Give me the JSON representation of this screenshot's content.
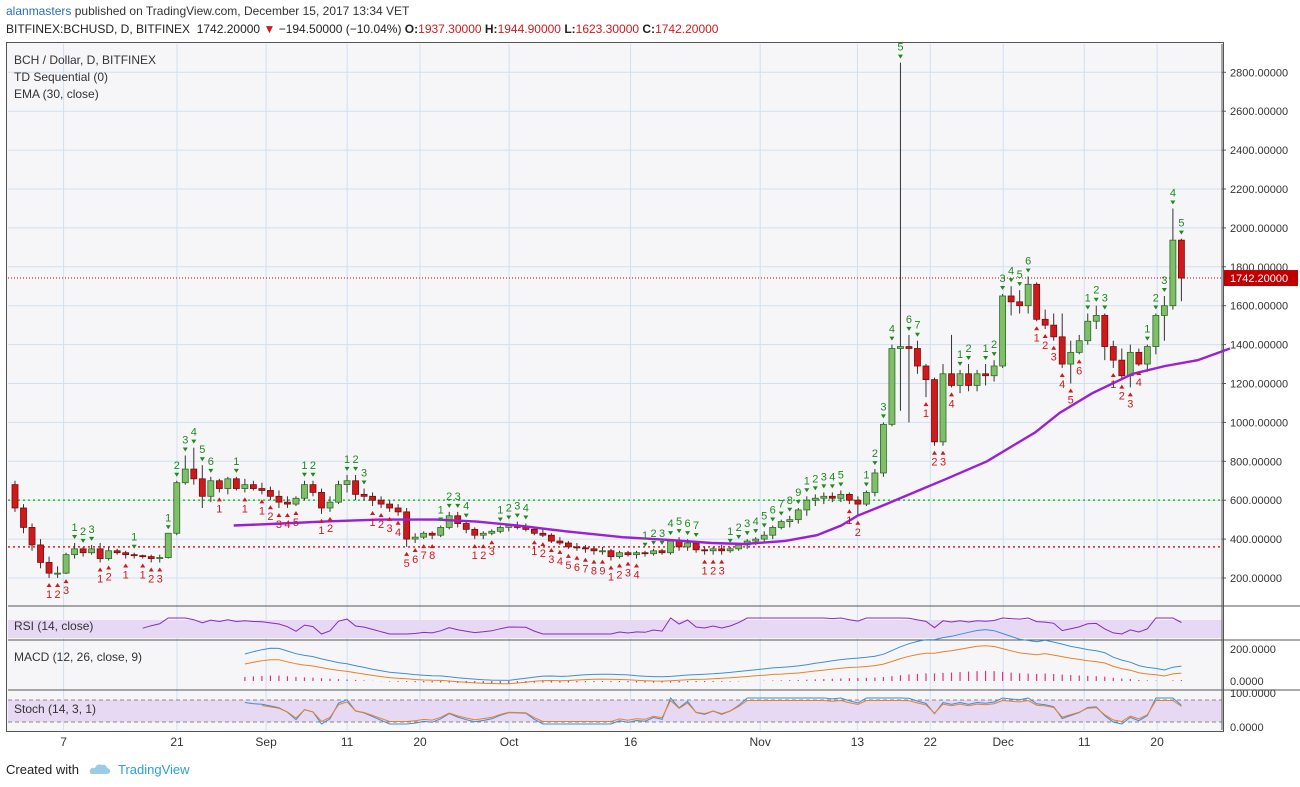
{
  "header": {
    "user": "alanmasters",
    "published": "published on TradingView.com, December 15, 2017 13:34 VET",
    "symbol": "BITFINEX:BCHUSD, D, BITFINEX",
    "price": "1742.20000",
    "change_arrow": "▼",
    "change": "−194.50000 (−10.04%)",
    "o_label": "O:",
    "o": "1937.30000",
    "h_label": "H:",
    "h": "1944.90000",
    "l_label": "L:",
    "l": "1623.30000",
    "c_label": "C:",
    "c": "1742.20000"
  },
  "legend": {
    "title": "BCH / Dollar, D, BITFINEX",
    "td": "TD Sequential (0)",
    "ema": "EMA (30, close)",
    "rsi": "RSI (14, close)",
    "macd": "MACD (12, 26, close, 9)",
    "stoch": "Stoch (14, 3, 1)"
  },
  "footer": {
    "created": "Created with",
    "brand": "TradingView"
  },
  "colors": {
    "up": "#5aa04e",
    "down": "#d0191b",
    "ema": "#9b1fd6",
    "grid": "#cfe0f3",
    "price_line": "#c00000"
  },
  "chart_data": {
    "type": "candlestick",
    "symbol": "BCH / Dollar",
    "interval": "D",
    "price_axis": {
      "ticks": [
        "200.00000",
        "400.00000",
        "600.00000",
        "800.00000",
        "1000.00000",
        "1200.00000",
        "1400.00000",
        "1600.00000",
        "1800.00000",
        "2000.00000",
        "2200.00000",
        "2400.00000",
        "2600.00000",
        "2800.00000"
      ],
      "ylim": [
        50,
        2900
      ]
    },
    "x_labels": [
      {
        "label": "7",
        "day": 6
      },
      {
        "label": "21",
        "day": 20
      },
      {
        "label": "Sep",
        "day": 31
      },
      {
        "label": "11",
        "day": 41
      },
      {
        "label": "20",
        "day": 50
      },
      {
        "label": "Oct",
        "day": 61
      },
      {
        "label": "16",
        "day": 76
      },
      {
        "label": "Nov",
        "day": 92
      },
      {
        "label": "13",
        "day": 104
      },
      {
        "label": "22",
        "day": 113
      },
      {
        "label": "Dec",
        "day": 122
      },
      {
        "label": "11",
        "day": 132
      },
      {
        "label": "20",
        "day": 141
      }
    ],
    "last_price_label": "1742.20000",
    "support_lines": [
      600,
      360
    ],
    "ohlc": [
      [
        680,
        700,
        540,
        560
      ],
      [
        560,
        580,
        430,
        460
      ],
      [
        460,
        480,
        340,
        370
      ],
      [
        370,
        400,
        250,
        280
      ],
      [
        280,
        310,
        200,
        225
      ],
      [
        225,
        260,
        200,
        225
      ],
      [
        225,
        330,
        220,
        320
      ],
      [
        320,
        380,
        300,
        350
      ],
      [
        350,
        360,
        310,
        330
      ],
      [
        330,
        370,
        320,
        350
      ],
      [
        350,
        380,
        280,
        300
      ],
      [
        300,
        360,
        290,
        340
      ],
      [
        340,
        350,
        320,
        330
      ],
      [
        330,
        340,
        300,
        320
      ],
      [
        320,
        330,
        300,
        315
      ],
      [
        315,
        320,
        300,
        310
      ],
      [
        310,
        320,
        280,
        300
      ],
      [
        300,
        320,
        280,
        305
      ],
      [
        305,
        430,
        300,
        430
      ],
      [
        430,
        700,
        420,
        690
      ],
      [
        690,
        830,
        680,
        760
      ],
      [
        760,
        870,
        680,
        710
      ],
      [
        710,
        780,
        560,
        620
      ],
      [
        620,
        720,
        590,
        700
      ],
      [
        700,
        710,
        640,
        660
      ],
      [
        660,
        720,
        630,
        710
      ],
      [
        710,
        720,
        650,
        660
      ],
      [
        660,
        710,
        640,
        680
      ],
      [
        680,
        700,
        650,
        660
      ],
      [
        660,
        690,
        630,
        650
      ],
      [
        650,
        670,
        600,
        620
      ],
      [
        620,
        650,
        560,
        590
      ],
      [
        590,
        620,
        560,
        580
      ],
      [
        580,
        620,
        570,
        610
      ],
      [
        610,
        700,
        600,
        680
      ],
      [
        680,
        700,
        620,
        640
      ],
      [
        640,
        660,
        530,
        560
      ],
      [
        560,
        620,
        540,
        590
      ],
      [
        590,
        700,
        580,
        680
      ],
      [
        680,
        730,
        640,
        700
      ],
      [
        700,
        730,
        600,
        630
      ],
      [
        630,
        660,
        600,
        620
      ],
      [
        620,
        640,
        570,
        600
      ],
      [
        600,
        620,
        560,
        580
      ],
      [
        580,
        600,
        540,
        560
      ],
      [
        560,
        580,
        520,
        540
      ],
      [
        540,
        560,
        360,
        400
      ],
      [
        400,
        430,
        380,
        410
      ],
      [
        410,
        440,
        400,
        430
      ],
      [
        430,
        440,
        400,
        420
      ],
      [
        420,
        470,
        410,
        460
      ],
      [
        460,
        540,
        450,
        520
      ],
      [
        520,
        540,
        460,
        480
      ],
      [
        480,
        490,
        430,
        450
      ],
      [
        450,
        460,
        400,
        420
      ],
      [
        420,
        440,
        400,
        430
      ],
      [
        430,
        450,
        420,
        440
      ],
      [
        440,
        470,
        430,
        460
      ],
      [
        460,
        480,
        440,
        470
      ],
      [
        470,
        490,
        450,
        460
      ],
      [
        460,
        480,
        440,
        450
      ],
      [
        450,
        460,
        420,
        430
      ],
      [
        430,
        450,
        410,
        420
      ],
      [
        420,
        430,
        380,
        390
      ],
      [
        390,
        410,
        370,
        380
      ],
      [
        380,
        390,
        350,
        360
      ],
      [
        360,
        380,
        340,
        355
      ],
      [
        355,
        370,
        330,
        350
      ],
      [
        350,
        360,
        320,
        340
      ],
      [
        340,
        360,
        320,
        340
      ],
      [
        340,
        350,
        290,
        310
      ],
      [
        310,
        340,
        300,
        330
      ],
      [
        330,
        340,
        310,
        320
      ],
      [
        320,
        340,
        300,
        330
      ],
      [
        330,
        340,
        310,
        325
      ],
      [
        325,
        350,
        315,
        340
      ],
      [
        340,
        350,
        320,
        330
      ],
      [
        330,
        400,
        320,
        390
      ],
      [
        390,
        410,
        340,
        360
      ],
      [
        360,
        400,
        340,
        380
      ],
      [
        380,
        390,
        330,
        345
      ],
      [
        345,
        360,
        320,
        340
      ],
      [
        340,
        360,
        320,
        350
      ],
      [
        350,
        370,
        320,
        340
      ],
      [
        340,
        360,
        330,
        350
      ],
      [
        350,
        380,
        340,
        370
      ],
      [
        370,
        400,
        350,
        390
      ],
      [
        390,
        410,
        370,
        400
      ],
      [
        400,
        440,
        380,
        420
      ],
      [
        420,
        470,
        400,
        460
      ],
      [
        460,
        500,
        450,
        490
      ],
      [
        490,
        520,
        460,
        500
      ],
      [
        500,
        560,
        480,
        550
      ],
      [
        550,
        620,
        520,
        600
      ],
      [
        600,
        630,
        570,
        610
      ],
      [
        610,
        640,
        580,
        620
      ],
      [
        620,
        640,
        590,
        610
      ],
      [
        610,
        650,
        590,
        630
      ],
      [
        630,
        640,
        580,
        600
      ],
      [
        600,
        620,
        520,
        580
      ],
      [
        580,
        650,
        570,
        640
      ],
      [
        640,
        760,
        620,
        740
      ],
      [
        740,
        1000,
        720,
        990
      ],
      [
        990,
        1400,
        980,
        1380
      ],
      [
        1380,
        2850,
        1060,
        1390
      ],
      [
        1390,
        1450,
        1000,
        1380
      ],
      [
        1380,
        1420,
        1250,
        1290
      ],
      [
        1290,
        1300,
        1130,
        1220
      ],
      [
        1220,
        1230,
        880,
        900
      ],
      [
        900,
        1300,
        880,
        1250
      ],
      [
        1250,
        1450,
        1180,
        1190
      ],
      [
        1190,
        1270,
        1150,
        1250
      ],
      [
        1250,
        1300,
        1160,
        1190
      ],
      [
        1190,
        1270,
        1160,
        1250
      ],
      [
        1250,
        1300,
        1190,
        1240
      ],
      [
        1240,
        1320,
        1210,
        1290
      ],
      [
        1290,
        1660,
        1280,
        1650
      ],
      [
        1650,
        1700,
        1550,
        1620
      ],
      [
        1620,
        1680,
        1560,
        1600
      ],
      [
        1600,
        1750,
        1560,
        1710
      ],
      [
        1710,
        1720,
        1520,
        1530
      ],
      [
        1530,
        1580,
        1480,
        1500
      ],
      [
        1500,
        1560,
        1420,
        1440
      ],
      [
        1440,
        1560,
        1280,
        1300
      ],
      [
        1300,
        1420,
        1200,
        1360
      ],
      [
        1360,
        1450,
        1350,
        1420
      ],
      [
        1420,
        1560,
        1400,
        1520
      ],
      [
        1520,
        1600,
        1480,
        1550
      ],
      [
        1550,
        1560,
        1320,
        1390
      ],
      [
        1390,
        1420,
        1280,
        1320
      ],
      [
        1320,
        1380,
        1220,
        1240
      ],
      [
        1240,
        1400,
        1180,
        1360
      ],
      [
        1360,
        1380,
        1290,
        1300
      ],
      [
        1300,
        1400,
        1260,
        1390
      ],
      [
        1390,
        1560,
        1350,
        1550
      ],
      [
        1550,
        1650,
        1420,
        1600
      ],
      [
        1600,
        2100,
        1580,
        1937
      ],
      [
        1937,
        1945,
        1623,
        1742
      ]
    ],
    "ema30": [
      [
        27,
        470
      ],
      [
        33,
        480
      ],
      [
        38,
        490
      ],
      [
        45,
        500
      ],
      [
        52,
        500
      ],
      [
        57,
        490
      ],
      [
        62,
        470
      ],
      [
        68,
        440
      ],
      [
        75,
        410
      ],
      [
        81,
        395
      ],
      [
        86,
        380
      ],
      [
        90,
        375
      ],
      [
        95,
        390
      ],
      [
        99,
        420
      ],
      [
        102,
        470
      ],
      [
        104,
        520
      ],
      [
        107,
        570
      ],
      [
        111,
        640
      ],
      [
        115,
        710
      ],
      [
        120,
        800
      ],
      [
        126,
        950
      ],
      [
        129,
        1050
      ],
      [
        133,
        1150
      ],
      [
        138,
        1250
      ],
      [
        142,
        1290
      ],
      [
        146,
        1320
      ],
      [
        150,
        1380
      ]
    ],
    "td_sequential": {
      "up_counts_green": [
        "1",
        "2",
        "3",
        "4",
        "5",
        "6",
        "7",
        "8",
        "9"
      ],
      "down_counts_red": [
        "1",
        "2",
        "3",
        "4",
        "5",
        "6",
        "7",
        "8",
        "9"
      ]
    },
    "indicators": [
      {
        "name": "RSI (14, close)"
      },
      {
        "name": "MACD (12, 26, close, 9)",
        "axis_ticks": [
          "200.0000",
          "0.0000"
        ]
      },
      {
        "name": "Stoch (14, 3, 1)",
        "axis_ticks": [
          "100.0000",
          "0.0000"
        ]
      }
    ]
  }
}
